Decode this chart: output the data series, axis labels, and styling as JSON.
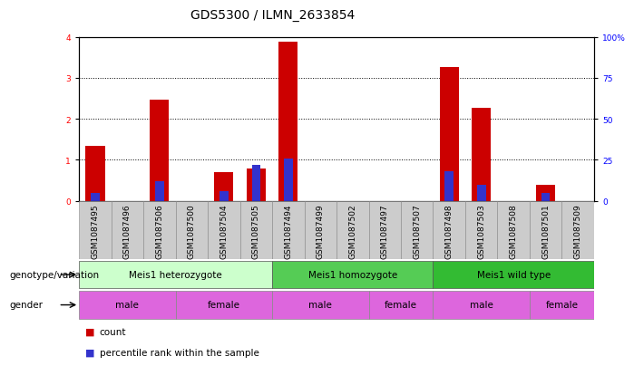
{
  "title": "GDS5300 / ILMN_2633854",
  "samples": [
    "GSM1087495",
    "GSM1087496",
    "GSM1087506",
    "GSM1087500",
    "GSM1087504",
    "GSM1087505",
    "GSM1087494",
    "GSM1087499",
    "GSM1087502",
    "GSM1087497",
    "GSM1087507",
    "GSM1087498",
    "GSM1087503",
    "GSM1087508",
    "GSM1087501",
    "GSM1087509"
  ],
  "count_values": [
    1.33,
    0.0,
    2.47,
    0.0,
    0.7,
    0.78,
    3.88,
    0.0,
    0.0,
    0.0,
    0.0,
    3.26,
    2.28,
    0.0,
    0.4,
    0.0
  ],
  "percentile_values": [
    5.0,
    0.0,
    12.0,
    0.0,
    6.0,
    22.0,
    26.0,
    0.0,
    0.0,
    0.0,
    0.0,
    18.0,
    10.0,
    0.0,
    5.0,
    0.0
  ],
  "ylim_left": [
    0,
    4
  ],
  "ylim_right": [
    0,
    100
  ],
  "yticks_left": [
    0,
    1,
    2,
    3,
    4
  ],
  "yticks_right": [
    0,
    25,
    50,
    75,
    100
  ],
  "ytick_labels_right": [
    "0",
    "25",
    "50",
    "75",
    "100%"
  ],
  "bar_color_count": "#cc0000",
  "bar_color_percentile": "#3333cc",
  "bar_width": 0.6,
  "bg_color": "#ffffff",
  "plot_bg": "#ffffff",
  "sample_bg": "#cccccc",
  "genotype_groups": [
    {
      "label": "Meis1 heterozygote",
      "start": 0,
      "end": 5,
      "color": "#ccffcc"
    },
    {
      "label": "Meis1 homozygote",
      "start": 6,
      "end": 10,
      "color": "#55cc55"
    },
    {
      "label": "Meis1 wild type",
      "start": 11,
      "end": 15,
      "color": "#33bb33"
    }
  ],
  "gender_groups": [
    {
      "label": "male",
      "start": 0,
      "end": 2,
      "color": "#dd66dd"
    },
    {
      "label": "female",
      "start": 3,
      "end": 5,
      "color": "#dd66dd"
    },
    {
      "label": "male",
      "start": 6,
      "end": 8,
      "color": "#dd66dd"
    },
    {
      "label": "female",
      "start": 9,
      "end": 10,
      "color": "#dd66dd"
    },
    {
      "label": "male",
      "start": 11,
      "end": 13,
      "color": "#dd66dd"
    },
    {
      "label": "female",
      "start": 14,
      "end": 15,
      "color": "#dd66dd"
    }
  ],
  "genotype_label": "genotype/variation",
  "gender_label": "gender",
  "legend_count": "count",
  "legend_percentile": "percentile rank within the sample",
  "title_fontsize": 10,
  "tick_fontsize": 6.5,
  "label_fontsize": 7.5,
  "row_label_fontsize": 7.5
}
